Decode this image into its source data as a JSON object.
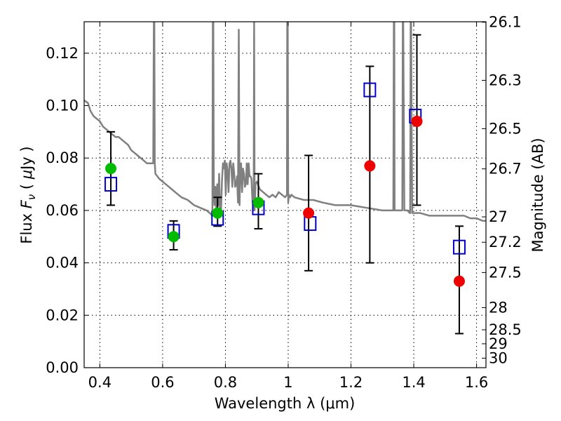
{
  "chart_data": {
    "type": "scatter",
    "xlabel": "Wavelength  λ (μm)",
    "ylabel": "Flux  F_ν  ( μJy )",
    "ylabel_parts": [
      "Flux ",
      "F",
      "ν",
      " ( ",
      "μ",
      "Jy )"
    ],
    "y2label": "Magnitude (AB)",
    "xlim": [
      0.35,
      1.63
    ],
    "ylim": [
      0.0,
      0.132
    ],
    "grid": true,
    "x_ticks": [
      0.4,
      0.6,
      0.8,
      1.0,
      1.2,
      1.4,
      1.6
    ],
    "x_tick_labels": [
      "0.4",
      "0.6",
      "0.8",
      "1",
      "1.2",
      "1.4",
      "1.6"
    ],
    "y_ticks": [
      0.0,
      0.02,
      0.04,
      0.06,
      0.08,
      0.1,
      0.12
    ],
    "y_tick_labels": [
      "0.00",
      "0.02",
      "0.04",
      "0.06",
      "0.08",
      "0.10",
      "0.12"
    ],
    "y2_ticks": [
      26.1,
      26.3,
      26.5,
      26.7,
      27,
      27.2,
      27.5,
      28,
      28.5,
      29,
      30
    ],
    "y2_tick_labels": [
      "26.1",
      "26.3",
      "26.5",
      "26.7",
      "27",
      "27.2",
      "27.5",
      "28",
      "28.5",
      "29",
      "30"
    ],
    "colors": {
      "model": "#808080",
      "green": "#00bb00",
      "red": "#ee0000",
      "square": "#0000cc",
      "errorbar": "#000000"
    },
    "series": [
      {
        "marker": "square",
        "x": [
          0.435,
          0.635,
          0.775,
          0.905,
          1.07,
          1.26,
          1.405,
          1.545
        ],
        "y": [
          0.07,
          0.052,
          0.057,
          0.061,
          0.055,
          0.106,
          0.096,
          0.046
        ]
      },
      {
        "marker": "green-circle",
        "x": [
          0.435,
          0.635,
          0.775,
          0.905
        ],
        "y": [
          0.076,
          0.05,
          0.059,
          0.063
        ],
        "yerr_low": [
          0.062,
          0.045,
          0.054,
          0.053
        ],
        "yerr_high": [
          0.09,
          0.056,
          0.065,
          0.074
        ]
      },
      {
        "marker": "red-circle",
        "x": [
          1.065,
          1.26,
          1.41,
          1.545
        ],
        "y": [
          0.059,
          0.077,
          0.094,
          0.033
        ],
        "yerr_low": [
          0.037,
          0.04,
          0.062,
          0.013
        ],
        "yerr_high": [
          0.081,
          0.115,
          0.127,
          0.054
        ]
      }
    ],
    "model_spectrum": {
      "x": [
        0.35,
        0.362,
        0.37,
        0.38,
        0.39,
        0.4,
        0.41,
        0.42,
        0.43,
        0.44,
        0.45,
        0.46,
        0.47,
        0.48,
        0.49,
        0.5,
        0.51,
        0.52,
        0.53,
        0.54,
        0.55,
        0.56,
        0.57,
        0.572,
        0.5735,
        0.575,
        0.577,
        0.59,
        0.6,
        0.61,
        0.62,
        0.63,
        0.64,
        0.65,
        0.66,
        0.68,
        0.7,
        0.72,
        0.74,
        0.75,
        0.7585,
        0.76,
        0.7615,
        0.763,
        0.765,
        0.768,
        0.771,
        0.774,
        0.777,
        0.78,
        0.783,
        0.786,
        0.789,
        0.792,
        0.795,
        0.798,
        0.801,
        0.804,
        0.807,
        0.81,
        0.813,
        0.816,
        0.819,
        0.822,
        0.825,
        0.828,
        0.831,
        0.834,
        0.837,
        0.84,
        0.8425,
        0.845,
        0.8475,
        0.85,
        0.853,
        0.856,
        0.859,
        0.862,
        0.865,
        0.868,
        0.871,
        0.874,
        0.877,
        0.88,
        0.883,
        0.886,
        0.888,
        0.89,
        0.8915,
        0.893,
        0.896,
        0.9,
        0.91,
        0.92,
        0.93,
        0.94,
        0.95,
        0.96,
        0.97,
        0.98,
        0.99,
        0.996,
        0.997,
        0.9985,
        1.0,
        1.002,
        1.006,
        1.01,
        1.02,
        1.05,
        1.08,
        1.11,
        1.15,
        1.2,
        1.25,
        1.3,
        1.335,
        1.3365,
        1.338,
        1.339,
        1.35,
        1.36,
        1.3635,
        1.365,
        1.3665,
        1.37,
        1.38,
        1.387,
        1.3885,
        1.39,
        1.3915,
        1.395,
        1.4,
        1.42,
        1.45,
        1.48,
        1.5,
        1.52,
        1.54,
        1.56,
        1.58,
        1.6,
        1.62,
        1.63
      ],
      "y": [
        0.102,
        0.101,
        0.098,
        0.096,
        0.095,
        0.094,
        0.092,
        0.091,
        0.09,
        0.089,
        0.088,
        0.088,
        0.087,
        0.086,
        0.085,
        0.083,
        0.082,
        0.081,
        0.08,
        0.079,
        0.078,
        0.078,
        0.078,
        0.132,
        0.132,
        0.078,
        0.074,
        0.072,
        0.071,
        0.07,
        0.069,
        0.068,
        0.067,
        0.066,
        0.065,
        0.064,
        0.062,
        0.061,
        0.06,
        0.059,
        0.058,
        0.132,
        0.132,
        0.066,
        0.062,
        0.069,
        0.06,
        0.07,
        0.062,
        0.074,
        0.058,
        0.06,
        0.071,
        0.078,
        0.076,
        0.079,
        0.066,
        0.078,
        0.075,
        0.067,
        0.078,
        0.079,
        0.076,
        0.069,
        0.078,
        0.074,
        0.069,
        0.07,
        0.073,
        0.063,
        0.129,
        0.062,
        0.076,
        0.078,
        0.067,
        0.076,
        0.074,
        0.069,
        0.07,
        0.078,
        0.07,
        0.078,
        0.073,
        0.073,
        0.072,
        0.064,
        0.062,
        0.06,
        0.132,
        0.06,
        0.07,
        0.071,
        0.068,
        0.067,
        0.066,
        0.065,
        0.066,
        0.065,
        0.067,
        0.066,
        0.065,
        0.066,
        0.132,
        0.132,
        0.063,
        0.066,
        0.065,
        0.066,
        0.065,
        0.064,
        0.064,
        0.063,
        0.062,
        0.062,
        0.061,
        0.06,
        0.06,
        0.132,
        0.132,
        0.06,
        0.06,
        0.06,
        0.06,
        0.132,
        0.132,
        0.06,
        0.06,
        0.059,
        0.059,
        0.132,
        0.132,
        0.059,
        0.059,
        0.059,
        0.058,
        0.058,
        0.058,
        0.058,
        0.058,
        0.058,
        0.057,
        0.057,
        0.056,
        0.056
      ]
    }
  }
}
